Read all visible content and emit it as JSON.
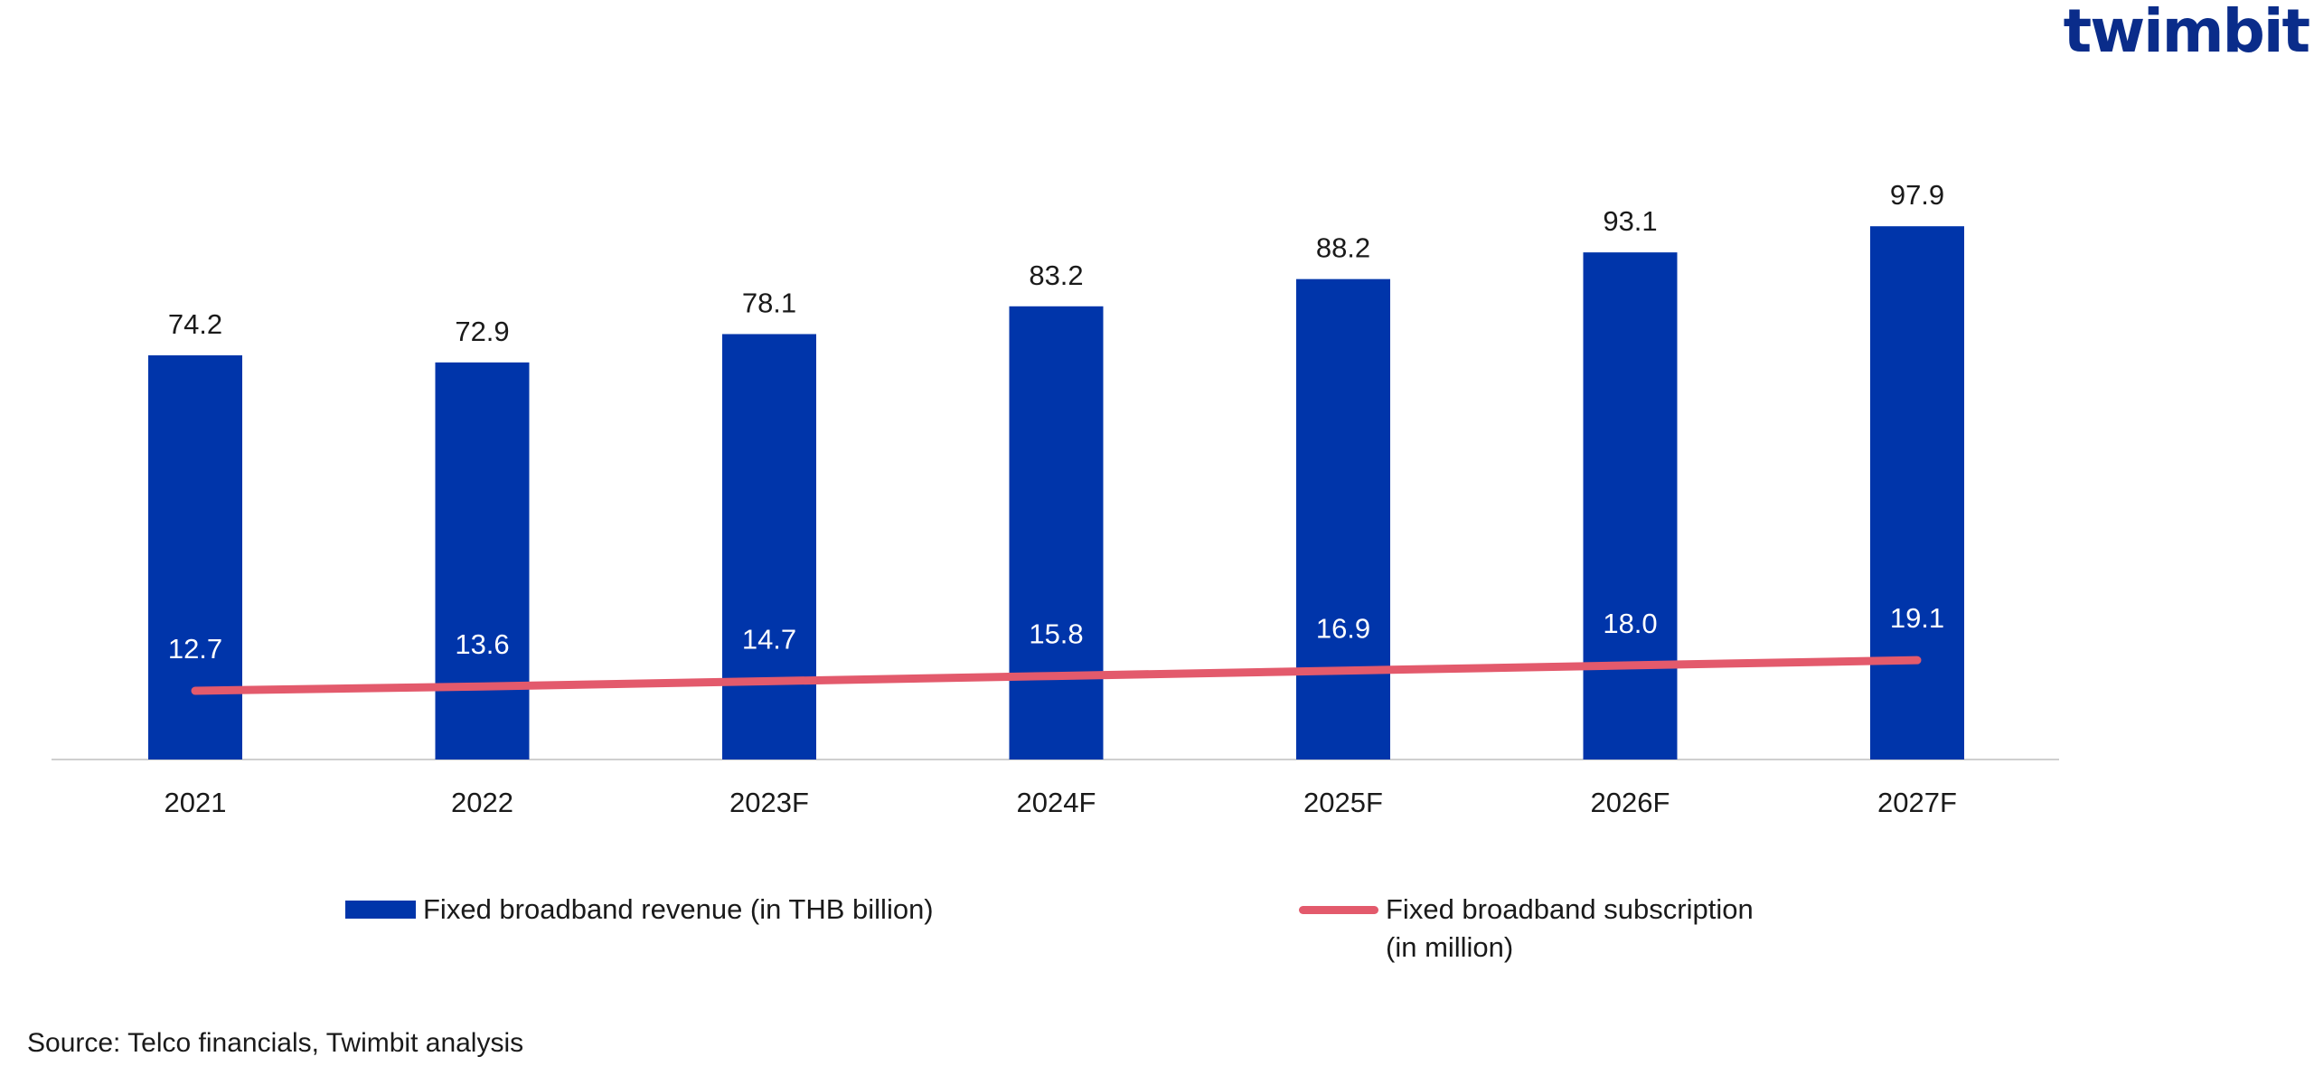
{
  "brand": {
    "logo_text": "twimbit",
    "logo_color": "#0a2c8a",
    "accent_color": "#e0314a"
  },
  "chart_data": {
    "type": "bar",
    "categories": [
      "2021",
      "2022",
      "2023F",
      "2024F",
      "2025F",
      "2026F",
      "2027F"
    ],
    "series": [
      {
        "name": "Fixed broadband revenue (in THB billion)",
        "type": "bar",
        "color": "#0035aa",
        "values": [
          74.2,
          72.9,
          78.1,
          83.2,
          88.2,
          93.1,
          97.9
        ],
        "labels": [
          "74.2",
          "72.9",
          "78.1",
          "83.2",
          "88.2",
          "93.1",
          "97.9"
        ]
      },
      {
        "name": "Fixed broadband subscription (in million)",
        "type": "line",
        "color": "#e35a6c",
        "values": [
          12.7,
          13.6,
          14.7,
          15.8,
          16.9,
          18.0,
          19.1
        ],
        "labels": [
          "12.7",
          "13.6",
          "14.7",
          "15.8",
          "16.9",
          "18.0",
          "19.1"
        ]
      }
    ],
    "legend_position": "bottom",
    "grid": false
  },
  "legend": {
    "bar_label": "Fixed broadband revenue (in THB billion)",
    "line_label_1": "Fixed broadband subscription",
    "line_label_2": "(in million)"
  },
  "source": "Source: Telco financials, Twimbit analysis"
}
